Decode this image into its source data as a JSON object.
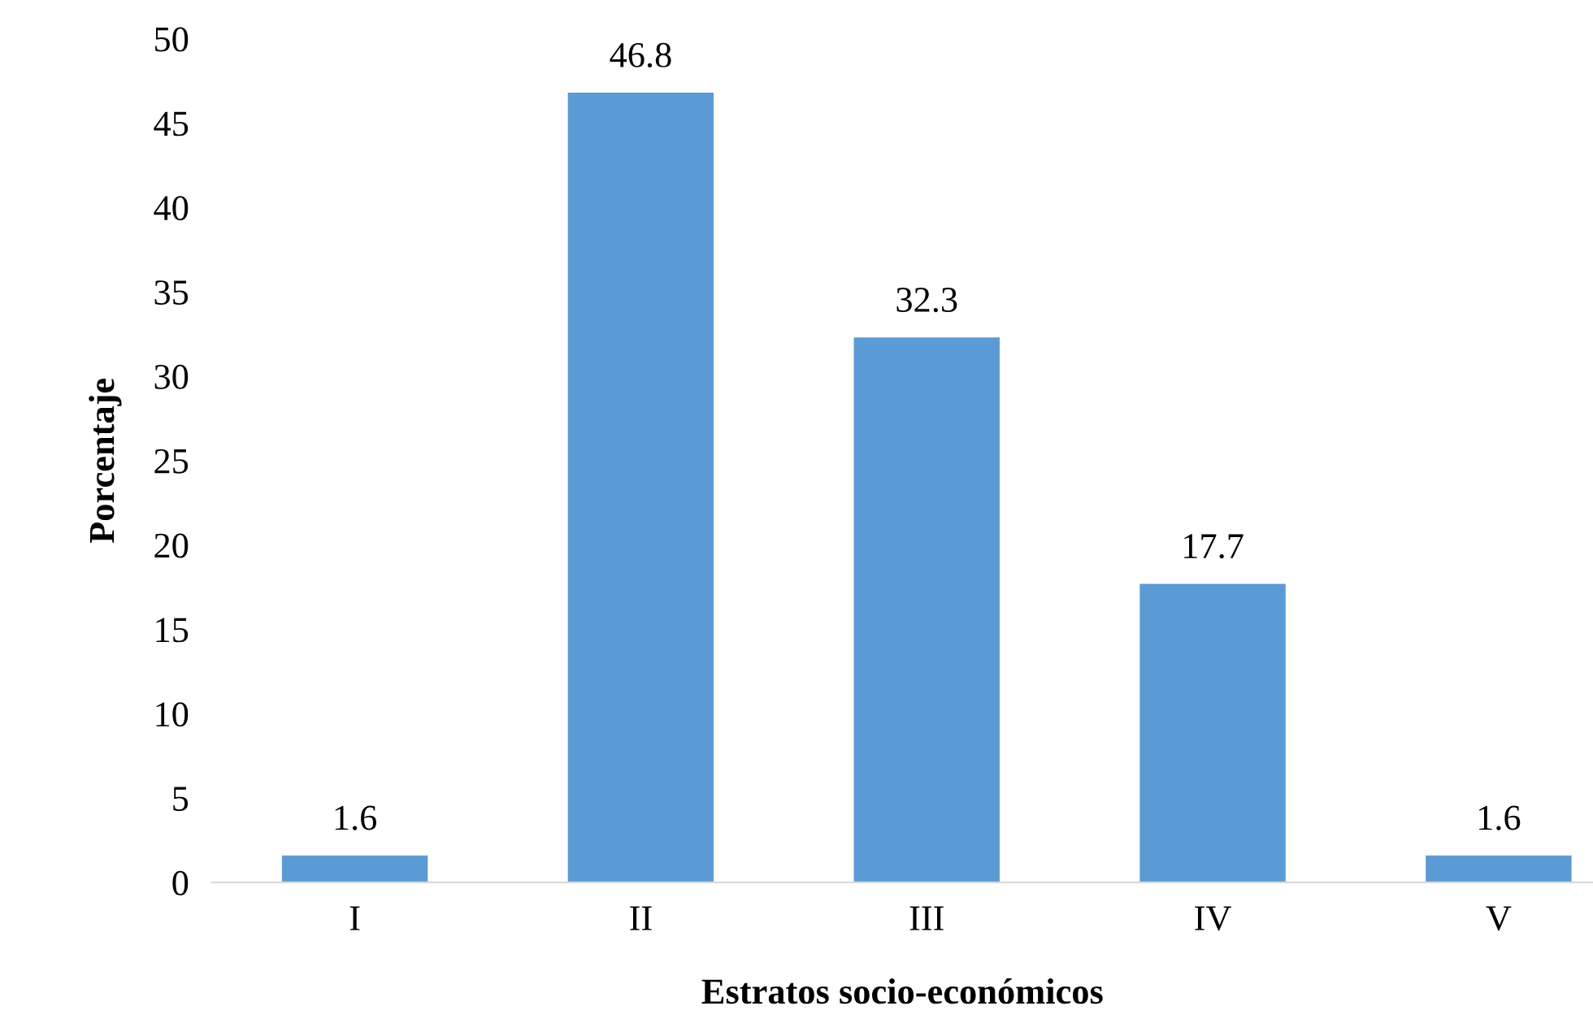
{
  "chart_data": {
    "type": "bar",
    "xlabel": "Estratos socio-económicos",
    "ylabel": "Porcentaje",
    "categories": [
      "I",
      "II",
      "III",
      "IV",
      "V"
    ],
    "values": [
      1.6,
      46.8,
      32.3,
      17.7,
      1.6
    ],
    "color": "#5b9bd5",
    "ylim": [
      0,
      50
    ],
    "yticks": [
      0,
      5,
      10,
      15,
      20,
      25,
      30,
      35,
      40,
      45,
      50
    ],
    "data_labels": true,
    "grid": false,
    "legend": false
  }
}
